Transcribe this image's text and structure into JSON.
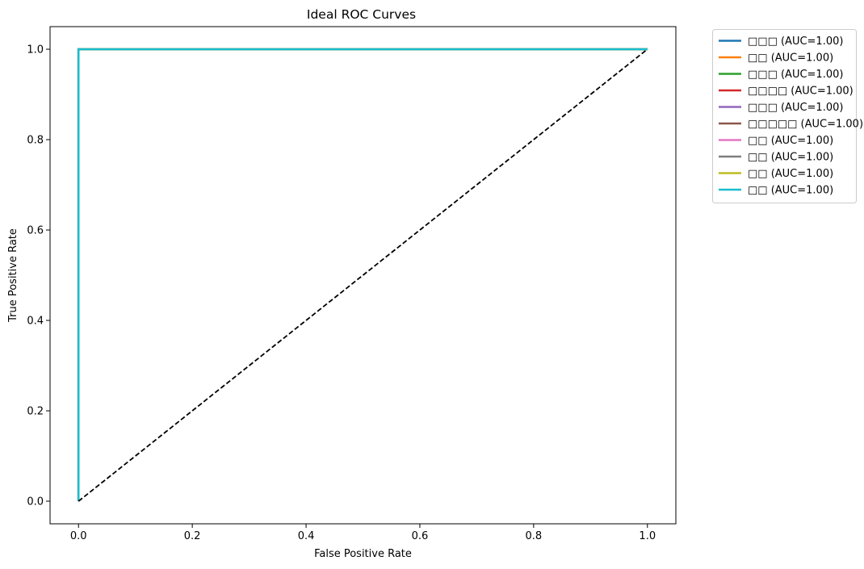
{
  "chart_data": {
    "type": "line",
    "title": "Ideal ROC Curves",
    "xlabel": "False Positive Rate",
    "ylabel": "True Positive Rate",
    "xlim": [
      -0.05,
      1.05
    ],
    "ylim": [
      -0.05,
      1.05
    ],
    "xticks": [
      "0.0",
      "0.2",
      "0.4",
      "0.6",
      "0.8",
      "1.0"
    ],
    "yticks": [
      "0.0",
      "0.2",
      "0.4",
      "0.6",
      "0.8",
      "1.0"
    ],
    "grid": false,
    "legend_position": "outside upper right",
    "series": [
      {
        "name": "□□□ (AUC=1.00)",
        "color": "#1f77b4",
        "x": [
          0,
          0,
          1
        ],
        "y": [
          0,
          1,
          1
        ]
      },
      {
        "name": "□□ (AUC=1.00)",
        "color": "#ff7f0e",
        "x": [
          0,
          0,
          1
        ],
        "y": [
          0,
          1,
          1
        ]
      },
      {
        "name": "□□□ (AUC=1.00)",
        "color": "#2ca02c",
        "x": [
          0,
          0,
          1
        ],
        "y": [
          0,
          1,
          1
        ]
      },
      {
        "name": "□□□□ (AUC=1.00)",
        "color": "#d62728",
        "x": [
          0,
          0,
          1
        ],
        "y": [
          0,
          1,
          1
        ]
      },
      {
        "name": "□□□ (AUC=1.00)",
        "color": "#9467bd",
        "x": [
          0,
          0,
          1
        ],
        "y": [
          0,
          1,
          1
        ]
      },
      {
        "name": "□□□□□ (AUC=1.00)",
        "color": "#8c564b",
        "x": [
          0,
          0,
          1
        ],
        "y": [
          0,
          1,
          1
        ]
      },
      {
        "name": "□□ (AUC=1.00)",
        "color": "#e377c2",
        "x": [
          0,
          0,
          1
        ],
        "y": [
          0,
          1,
          1
        ]
      },
      {
        "name": "□□ (AUC=1.00)",
        "color": "#7f7f7f",
        "x": [
          0,
          0,
          1
        ],
        "y": [
          0,
          1,
          1
        ]
      },
      {
        "name": "□□ (AUC=1.00)",
        "color": "#bcbd22",
        "x": [
          0,
          0,
          1
        ],
        "y": [
          0,
          1,
          1
        ]
      },
      {
        "name": "□□ (AUC=1.00)",
        "color": "#17becf",
        "x": [
          0,
          0,
          1
        ],
        "y": [
          0,
          1,
          1
        ]
      }
    ],
    "reference_line": {
      "x": [
        0,
        1
      ],
      "y": [
        0,
        1
      ],
      "color": "#000000",
      "style": "dashed"
    }
  }
}
